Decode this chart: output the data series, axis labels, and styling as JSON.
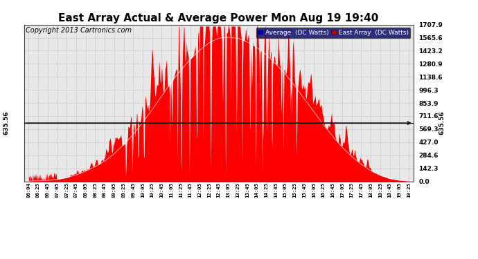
{
  "title": "East Array Actual & Average Power Mon Aug 19 19:40",
  "copyright": "Copyright 2013 Cartronics.com",
  "ylabel_right_ticks": [
    0.0,
    142.3,
    284.6,
    427.0,
    569.3,
    711.6,
    853.9,
    996.3,
    1138.6,
    1280.9,
    1423.2,
    1565.6,
    1707.9
  ],
  "average_line_value": 635.56,
  "average_line_label": "635.56",
  "ymax": 1707.9,
  "legend_labels": [
    "Average  (DC Watts)",
    "East Array  (DC Watts)"
  ],
  "legend_colors_bg": [
    "#0000cc",
    "#cc0000"
  ],
  "bg_color": "#ffffff",
  "plot_bg_color": "#e8e8e8",
  "grid_color": "#bbbbbb",
  "fill_color": "#ff0000",
  "avg_line_color": "#000000",
  "title_fontsize": 11,
  "copyright_fontsize": 7,
  "x_tick_labels": [
    "06:04",
    "06:25",
    "06:45",
    "07:05",
    "07:25",
    "07:45",
    "08:05",
    "08:25",
    "08:45",
    "09:05",
    "09:25",
    "09:45",
    "10:05",
    "10:25",
    "10:45",
    "11:05",
    "11:25",
    "11:45",
    "12:05",
    "12:25",
    "12:45",
    "13:05",
    "13:25",
    "13:45",
    "14:05",
    "14:25",
    "14:45",
    "15:05",
    "15:25",
    "15:45",
    "16:05",
    "16:25",
    "16:45",
    "17:05",
    "17:25",
    "17:45",
    "18:05",
    "18:25",
    "18:45",
    "19:05",
    "19:25"
  ],
  "smooth_envelope": [
    2,
    5,
    10,
    20,
    40,
    70,
    110,
    160,
    220,
    300,
    400,
    510,
    640,
    780,
    930,
    1080,
    1210,
    1330,
    1430,
    1510,
    1560,
    1570,
    1560,
    1520,
    1460,
    1380,
    1280,
    1170,
    1040,
    900,
    760,
    620,
    490,
    370,
    270,
    185,
    115,
    65,
    30,
    12,
    3
  ],
  "spike_seed": 77,
  "n_high_res": 800
}
